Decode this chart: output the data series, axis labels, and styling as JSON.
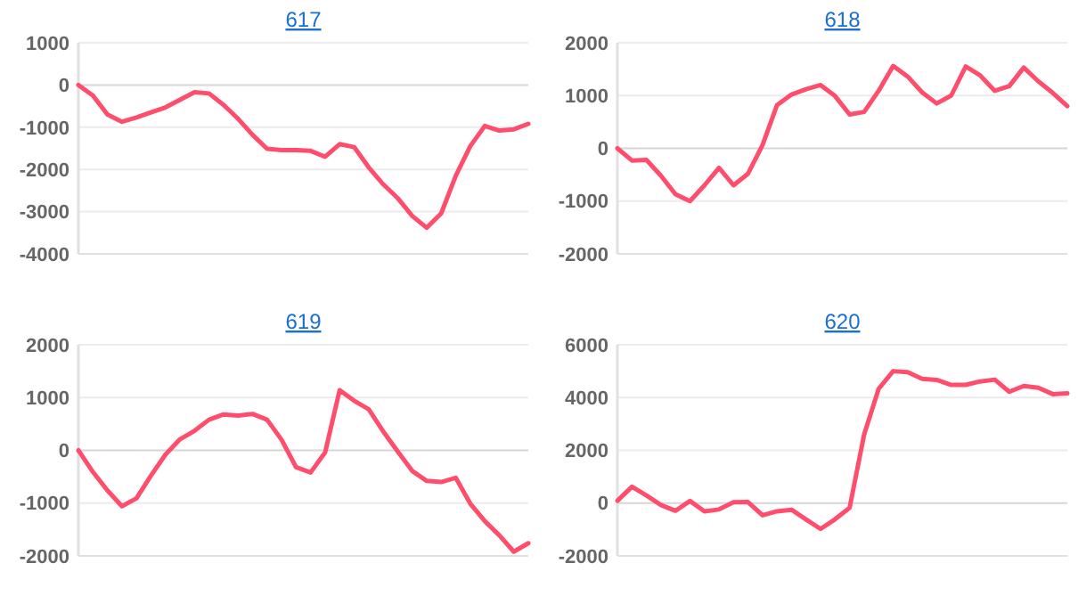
{
  "chart_data": [
    {
      "type": "line",
      "title": "617",
      "categories": [
        null,
        null,
        null,
        null,
        null,
        null,
        null,
        null,
        null,
        null,
        null,
        null,
        null,
        null,
        null,
        null,
        null,
        null,
        null,
        null,
        null,
        null,
        null,
        null,
        null,
        null,
        null,
        null,
        null,
        null,
        null,
        null
      ],
      "series": [
        {
          "color": "#ff4d6d",
          "values": [
            0,
            -250,
            -700,
            -870,
            -770,
            -650,
            -530,
            -350,
            -170,
            -200,
            -470,
            -800,
            -1180,
            -1510,
            -1540,
            -1540,
            -1560,
            -1700,
            -1400,
            -1470,
            -1950,
            -2350,
            -2680,
            -3100,
            -3380,
            -3040,
            -2150,
            -1450,
            -970,
            -1080,
            -1050,
            -920
          ]
        }
      ],
      "ylim": [
        -4000,
        1000
      ],
      "yticks": [
        -4000,
        -3000,
        -2000,
        -1000,
        0,
        1000
      ],
      "grid": "y",
      "marker": "none",
      "line_style": "solid"
    },
    {
      "type": "line",
      "title": "618",
      "categories": [
        null,
        null,
        null,
        null,
        null,
        null,
        null,
        null,
        null,
        null,
        null,
        null,
        null,
        null,
        null,
        null,
        null,
        null,
        null,
        null,
        null,
        null,
        null,
        null,
        null,
        null,
        null,
        null,
        null,
        null,
        null,
        null
      ],
      "series": [
        {
          "color": "#ff4d6d",
          "values": [
            0,
            -230,
            -220,
            -520,
            -870,
            -1000,
            -700,
            -370,
            -700,
            -480,
            60,
            820,
            1020,
            1120,
            1200,
            990,
            640,
            690,
            1090,
            1560,
            1360,
            1060,
            850,
            1000,
            1550,
            1380,
            1090,
            1180,
            1530,
            1270,
            1050,
            800
          ]
        }
      ],
      "ylim": [
        -2000,
        2000
      ],
      "yticks": [
        -2000,
        -1000,
        0,
        1000,
        2000
      ],
      "grid": "y",
      "marker": "none",
      "line_style": "solid"
    },
    {
      "type": "line",
      "title": "619",
      "categories": [
        null,
        null,
        null,
        null,
        null,
        null,
        null,
        null,
        null,
        null,
        null,
        null,
        null,
        null,
        null,
        null,
        null,
        null,
        null,
        null,
        null,
        null,
        null,
        null,
        null,
        null,
        null,
        null,
        null,
        null,
        null,
        null
      ],
      "series": [
        {
          "color": "#ff4d6d",
          "values": [
            0,
            -410,
            -760,
            -1060,
            -910,
            -480,
            -80,
            210,
            370,
            580,
            680,
            660,
            690,
            580,
            200,
            -320,
            -420,
            -40,
            1140,
            940,
            780,
            360,
            -20,
            -390,
            -580,
            -600,
            -520,
            -1010,
            -1340,
            -1610,
            -1920,
            -1760
          ]
        }
      ],
      "ylim": [
        -2000,
        2000
      ],
      "yticks": [
        -2000,
        -1000,
        0,
        1000,
        2000
      ],
      "grid": "y",
      "marker": "none",
      "line_style": "solid"
    },
    {
      "type": "line",
      "title": "620",
      "categories": [
        null,
        null,
        null,
        null,
        null,
        null,
        null,
        null,
        null,
        null,
        null,
        null,
        null,
        null,
        null,
        null,
        null,
        null,
        null,
        null,
        null,
        null,
        null,
        null,
        null,
        null,
        null,
        null,
        null,
        null,
        null,
        null
      ],
      "series": [
        {
          "color": "#ff4d6d",
          "values": [
            90,
            620,
            290,
            -70,
            -290,
            80,
            -310,
            -240,
            30,
            40,
            -460,
            -310,
            -250,
            -620,
            -980,
            -610,
            -180,
            2600,
            4330,
            5000,
            4960,
            4710,
            4670,
            4480,
            4480,
            4610,
            4680,
            4220,
            4440,
            4370,
            4130,
            4160
          ]
        }
      ],
      "ylim": [
        -2000,
        6000
      ],
      "yticks": [
        -2000,
        0,
        2000,
        4000,
        6000
      ],
      "grid": "y",
      "marker": "none",
      "line_style": "solid"
    }
  ]
}
